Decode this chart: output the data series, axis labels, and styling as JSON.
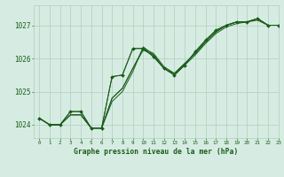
{
  "title": "Graphe pression niveau de la mer (hPa)",
  "bg_color": "#d6ece2",
  "grid_color": "#aecfbe",
  "line_color": "#1a5c1a",
  "xlim": [
    -0.5,
    23
  ],
  "ylim": [
    1023.6,
    1027.6
  ],
  "yticks": [
    1024,
    1025,
    1026,
    1027
  ],
  "xtick_labels": [
    "0",
    "1",
    "2",
    "3",
    "4",
    "5",
    "6",
    "7",
    "8",
    "9",
    "10",
    "11",
    "12",
    "13",
    "14",
    "15",
    "16",
    "17",
    "18",
    "19",
    "20",
    "21",
    "22",
    "23"
  ],
  "series": [
    [
      1024.2,
      1024.0,
      1024.0,
      1024.3,
      1024.3,
      1023.9,
      1023.9,
      1024.7,
      1025.0,
      1025.6,
      1026.35,
      1026.1,
      1025.7,
      1025.5,
      1025.8,
      1026.1,
      1026.45,
      1026.75,
      1026.95,
      1027.05,
      1027.1,
      1027.15,
      1027.0,
      1027.0
    ],
    [
      1024.2,
      1024.0,
      1024.0,
      1024.3,
      1024.3,
      1023.9,
      1023.9,
      1024.8,
      1025.1,
      1025.7,
      1026.3,
      1026.15,
      1025.75,
      1025.55,
      1025.85,
      1026.15,
      1026.5,
      1026.8,
      1027.0,
      1027.1,
      1027.1,
      1027.2,
      1027.0,
      1027.0
    ],
    [
      1024.2,
      1024.0,
      1024.0,
      1024.3,
      1024.3,
      1023.9,
      1023.9,
      1024.8,
      1025.1,
      1025.7,
      1026.25,
      1026.1,
      1025.7,
      1025.55,
      1025.85,
      1026.15,
      1026.5,
      1026.8,
      1027.0,
      1027.1,
      1027.1,
      1027.2,
      1027.0,
      1027.0
    ],
    [
      1024.2,
      1024.0,
      1024.0,
      1024.4,
      1024.4,
      1023.9,
      1023.9,
      1025.45,
      1025.5,
      1026.3,
      1026.3,
      1026.05,
      1025.7,
      1025.5,
      1025.8,
      1026.2,
      1026.55,
      1026.85,
      1027.0,
      1027.1,
      1027.1,
      1027.2,
      1027.0,
      1027.0
    ]
  ],
  "marker_x": [
    0,
    1,
    2,
    3,
    4,
    5,
    6,
    7,
    8,
    9,
    10,
    11,
    12,
    13,
    14,
    15,
    16,
    17,
    18,
    19,
    20,
    21,
    22,
    23
  ],
  "marker_y": [
    1024.2,
    1024.0,
    1024.0,
    1024.4,
    1024.4,
    1023.9,
    1023.9,
    1025.45,
    1025.5,
    1026.3,
    1026.3,
    1026.05,
    1025.7,
    1025.5,
    1025.8,
    1026.2,
    1026.55,
    1026.85,
    1027.0,
    1027.1,
    1027.1,
    1027.2,
    1027.0,
    1027.0
  ]
}
